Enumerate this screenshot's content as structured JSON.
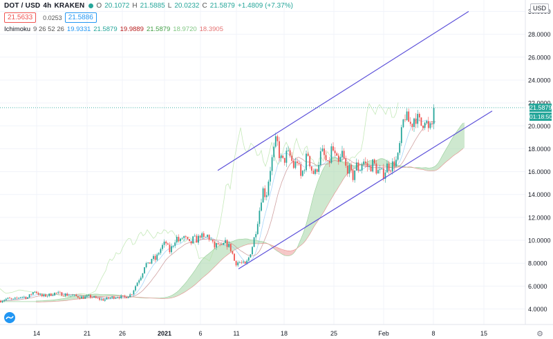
{
  "header": {
    "symbol": "DOT / USD",
    "interval": "4h",
    "exchange": "KRAKEN",
    "open_label": "O",
    "open": "20.1072",
    "high_label": "H",
    "high": "21.5885",
    "low_label": "L",
    "low": "20.0232",
    "close_label": "C",
    "close": "21.5879",
    "change": "+1.4809 (+7.37%)",
    "bid": "21.5633",
    "spread": "0.0253",
    "ask": "21.5886"
  },
  "indicator": {
    "name": "Ichimoku",
    "params": "9 26 52 26",
    "values": [
      "19.9331",
      "21.5879",
      "19.9889",
      "21.5879",
      "18.9720",
      "18.3905"
    ],
    "colors": [
      "#2196f3",
      "#26a69a",
      "#b71c1c",
      "#43a047",
      "#81c784",
      "#e57373"
    ]
  },
  "axis": {
    "currency": "USD",
    "last_price": "21.5879",
    "countdown": "01:18:50"
  },
  "colors": {
    "up": "#26a69a",
    "down": "#ef5350",
    "channel": "#5b4fd9",
    "cloud_bull": "#a5d6a7",
    "cloud_bear": "#ef9a9a"
  },
  "chart_data": {
    "type": "candlestick",
    "y_ticks": [
      "4.0000",
      "6.0000",
      "8.0000",
      "10.0000",
      "12.0000",
      "14.0000",
      "16.0000",
      "18.0000",
      "20.0000",
      "22.0000",
      "24.0000",
      "26.0000",
      "28.0000",
      "30.0000"
    ],
    "x_ticks": [
      "14",
      "21",
      "26",
      "2021",
      "6",
      "11",
      "18",
      "25",
      "Feb",
      "8",
      "15"
    ],
    "ylim": [
      2.8,
      31.2
    ],
    "price_series": [
      [
        0,
        4.7
      ],
      [
        10,
        4.9
      ],
      [
        20,
        4.8
      ],
      [
        30,
        5.1
      ],
      [
        40,
        5.0
      ],
      [
        50,
        5.6
      ],
      [
        60,
        5.1
      ],
      [
        70,
        5.2
      ],
      [
        80,
        5.4
      ],
      [
        90,
        5.3
      ],
      [
        100,
        5.2
      ],
      [
        110,
        5.1
      ],
      [
        120,
        5.0
      ],
      [
        130,
        5.1
      ],
      [
        140,
        4.9
      ],
      [
        150,
        4.8
      ],
      [
        160,
        5.0
      ],
      [
        170,
        5.1
      ],
      [
        180,
        5.0
      ],
      [
        190,
        5.3
      ],
      [
        200,
        6.5
      ],
      [
        205,
        7.0
      ],
      [
        210,
        8.0
      ],
      [
        215,
        7.8
      ],
      [
        220,
        8.5
      ],
      [
        225,
        8.3
      ],
      [
        230,
        9.0
      ],
      [
        235,
        9.5
      ],
      [
        240,
        9.8
      ],
      [
        245,
        9.0
      ],
      [
        250,
        9.6
      ],
      [
        255,
        10.3
      ],
      [
        260,
        9.8
      ],
      [
        265,
        10.4
      ],
      [
        270,
        10.0
      ],
      [
        275,
        9.6
      ],
      [
        280,
        10.2
      ],
      [
        285,
        10.0
      ],
      [
        290,
        10.5
      ],
      [
        295,
        10.1
      ],
      [
        300,
        10.4
      ],
      [
        305,
        10.0
      ],
      [
        310,
        9.4
      ],
      [
        315,
        9.7
      ],
      [
        320,
        9.3
      ],
      [
        325,
        9.8
      ],
      [
        330,
        9.6
      ],
      [
        335,
        9.1
      ],
      [
        340,
        8.0
      ],
      [
        345,
        8.1
      ],
      [
        350,
        8.0
      ],
      [
        355,
        7.8
      ],
      [
        360,
        8.5
      ],
      [
        365,
        9.5
      ],
      [
        370,
        10.8
      ],
      [
        375,
        12.5
      ],
      [
        380,
        14.5
      ],
      [
        385,
        13.8
      ],
      [
        390,
        16.0
      ],
      [
        395,
        17.5
      ],
      [
        400,
        18.9
      ],
      [
        405,
        17.2
      ],
      [
        410,
        16.8
      ],
      [
        415,
        17.6
      ],
      [
        420,
        17.3
      ],
      [
        425,
        16.4
      ],
      [
        430,
        17.0
      ],
      [
        435,
        15.5
      ],
      [
        440,
        16.4
      ],
      [
        445,
        17.7
      ],
      [
        450,
        16.3
      ],
      [
        455,
        15.7
      ],
      [
        460,
        16.6
      ],
      [
        465,
        17.8
      ],
      [
        470,
        17.2
      ],
      [
        475,
        16.3
      ],
      [
        480,
        18.2
      ],
      [
        485,
        17.2
      ],
      [
        490,
        16.6
      ],
      [
        495,
        17.6
      ],
      [
        500,
        16.4
      ],
      [
        505,
        16.2
      ],
      [
        510,
        15.4
      ],
      [
        515,
        16.6
      ],
      [
        520,
        16.1
      ],
      [
        525,
        17.0
      ],
      [
        530,
        16.5
      ],
      [
        535,
        16.3
      ],
      [
        540,
        16.8
      ],
      [
        545,
        16.1
      ],
      [
        550,
        15.9
      ],
      [
        555,
        15.8
      ],
      [
        560,
        16.5
      ],
      [
        565,
        16.4
      ],
      [
        570,
        16.8
      ],
      [
        575,
        17.0
      ],
      [
        580,
        19.0
      ],
      [
        585,
        21.0
      ],
      [
        590,
        20.5
      ],
      [
        595,
        20.0
      ],
      [
        600,
        20.9
      ],
      [
        605,
        20.5
      ],
      [
        610,
        20.0
      ],
      [
        615,
        20.8
      ],
      [
        620,
        19.5
      ],
      [
        625,
        20.1
      ],
      [
        630,
        21.59
      ]
    ],
    "channel_upper": [
      [
        315,
        16.1
      ],
      [
        678,
        30.0
      ]
    ],
    "channel_lower": [
      [
        345,
        7.5
      ],
      [
        712,
        21.3
      ]
    ]
  }
}
